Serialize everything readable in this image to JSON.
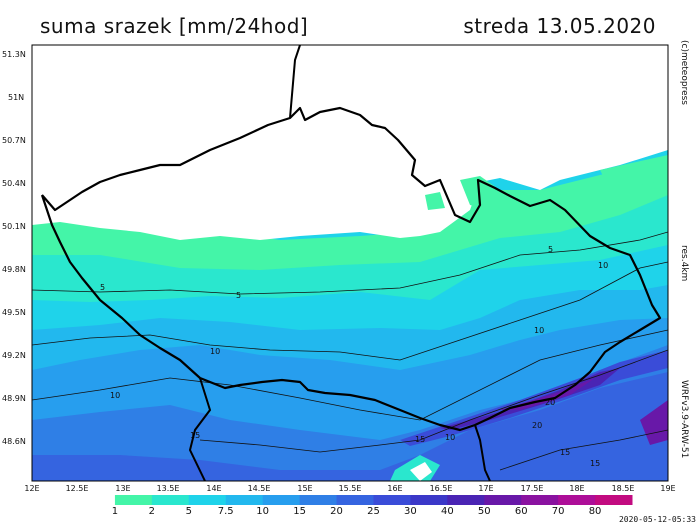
{
  "title": "suma srazek [mm/24hod]",
  "date": "streda 13.05.2020",
  "credit": "(c)meteopress",
  "resolution": "res.4km",
  "model": "WRFv3.9-ARW-51",
  "timestamp": "2020-05-12-05:33",
  "latitude_labels": [
    "51.3N",
    "51N",
    "50.7N",
    "50.4N",
    "50.1N",
    "49.8N",
    "49.5N",
    "49.2N",
    "48.9N",
    "48.6N"
  ],
  "longitude_labels": [
    "12E",
    "12.5E",
    "13E",
    "13.5E",
    "14E",
    "14.5E",
    "15E",
    "15.5E",
    "16E",
    "16.5E",
    "17E",
    "17.5E",
    "18E",
    "18.5E",
    "19E"
  ],
  "legend": {
    "labels": [
      "1",
      "2",
      "5",
      "7.5",
      "10",
      "15",
      "20",
      "25",
      "30",
      "40",
      "50",
      "60",
      "70",
      "80"
    ],
    "colors": [
      "#ffffff",
      "#44f5a8",
      "#2ae7ce",
      "#1fd3ea",
      "#22b8ee",
      "#279eee",
      "#2f7fe6",
      "#3564e0",
      "#3a4cd8",
      "#3b38c8",
      "#4a24b4",
      "#6818a8",
      "#8a12a0",
      "#ad0e98",
      "#c20b80"
    ]
  },
  "contour_labels": [
    "5",
    "5",
    "5",
    "10",
    "10",
    "10",
    "10",
    "10",
    "15",
    "15",
    "15",
    "15",
    "20",
    "20"
  ]
}
